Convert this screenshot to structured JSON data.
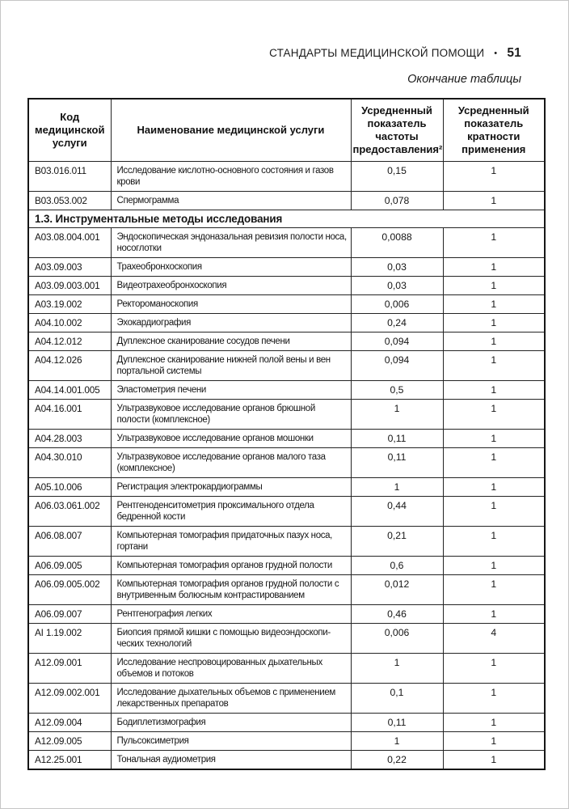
{
  "page_header": {
    "title": "СТАНДАРТЫ МЕДИЦИНСКОЙ ПОМОЩИ",
    "separator": "•",
    "page_number": "51"
  },
  "table_caption": "Окончание таблицы",
  "table": {
    "columns": [
      "Код медицинской услуги",
      "Наименование медицинской услуги",
      "Усредненный показатель частоты предоставления²",
      "Усредненный показатель кратности применения"
    ],
    "rows": [
      {
        "code": "B03.016.011",
        "name": "Исследование кислотно-основного состояния и газов крови",
        "frequency": "0,15",
        "multiplicity": "1"
      },
      {
        "code": "B03.053.002",
        "name": "Спермограмма",
        "frequency": "0,078",
        "multiplicity": "1"
      },
      {
        "section": "1.3. Инструментальные методы исследования"
      },
      {
        "code": "A03.08.004.001",
        "name": "Эндоскопическая эндоназальная ревизия полости носа, носоглотки",
        "frequency": "0,0088",
        "multiplicity": "1"
      },
      {
        "code": "A03.09.003",
        "name": "Трахеобронхоскопия",
        "frequency": "0,03",
        "multiplicity": "1"
      },
      {
        "code": "A03.09.003.001",
        "name": "Видеотрахеобронхоскопия",
        "frequency": "0,03",
        "multiplicity": "1"
      },
      {
        "code": "A03.19.002",
        "name": "Ректороманоскопия",
        "frequency": "0,006",
        "multiplicity": "1"
      },
      {
        "code": "A04.10.002",
        "name": "Эхокардиография",
        "frequency": "0,24",
        "multiplicity": "1"
      },
      {
        "code": "A04.12.012",
        "name": "Дуплексное сканирование сосудов печени",
        "frequency": "0,094",
        "multiplicity": "1"
      },
      {
        "code": "A04.12.026",
        "name": "Дуплексное сканирование нижней полой вены и вен портальной системы",
        "frequency": "0,094",
        "multiplicity": "1"
      },
      {
        "code": "A04.14.001.005",
        "name": "Эластометрия печени",
        "frequency": "0,5",
        "multiplicity": "1"
      },
      {
        "code": "A04.16.001",
        "name": "Ультразвуковое исследование органов брюшной полости (комплексное)",
        "frequency": "1",
        "multiplicity": "1"
      },
      {
        "code": "A04.28.003",
        "name": "Ультразвуковое исследование органов мошонки",
        "frequency": "0,11",
        "multiplicity": "1"
      },
      {
        "code": "A04.30.010",
        "name": "Ультразвуковое исследование органов малого таза (комплексное)",
        "frequency": "0,11",
        "multiplicity": "1"
      },
      {
        "code": "A05.10.006",
        "name": "Регистрация электрокардиограммы",
        "frequency": "1",
        "multiplicity": "1"
      },
      {
        "code": "A06.03.061.002",
        "name": "Рентгеноденситометрия проксимального отдела бедренной кости",
        "frequency": "0,44",
        "multiplicity": "1"
      },
      {
        "code": "A06.08.007",
        "name": "Компьютерная томография придаточных пазух носа, гортани",
        "frequency": "0,21",
        "multiplicity": "1"
      },
      {
        "code": "A06.09.005",
        "name": "Компьютерная томография органов грудной полости",
        "frequency": "0,6",
        "multiplicity": "1"
      },
      {
        "code": "A06.09.005.002",
        "name": "Компьютерная томография органов грудной полости с внутривенным болюсным контрастированием",
        "frequency": "0,012",
        "multiplicity": "1"
      },
      {
        "code": "A06.09.007",
        "name": "Рентгенография легких",
        "frequency": "0,46",
        "multiplicity": "1"
      },
      {
        "code": "AI 1.19.002",
        "name": "Биопсия прямой кишки с помощью видеоэндоскопи-ческих технологий",
        "frequency": "0,006",
        "multiplicity": "4"
      },
      {
        "code": "A12.09.001",
        "name": "Исследование неспровоцированных дыхательных объемов и потоков",
        "frequency": "1",
        "multiplicity": "1"
      },
      {
        "code": "A12.09.002.001",
        "name": "Исследование дыхательных объемов с применением лекарственных препаратов",
        "frequency": "0,1",
        "multiplicity": "1"
      },
      {
        "code": "A12.09.004",
        "name": "Бодиплетизмография",
        "frequency": "0,11",
        "multiplicity": "1"
      },
      {
        "code": "A12.09.005",
        "name": "Пульсоксиметрия",
        "frequency": "1",
        "multiplicity": "1"
      },
      {
        "code": "A12.25.001",
        "name": "Тональная аудиометрия",
        "frequency": "0,22",
        "multiplicity": "1"
      }
    ]
  }
}
